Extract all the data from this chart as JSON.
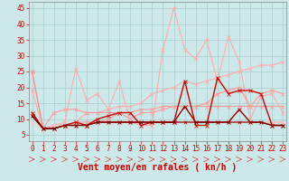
{
  "title": "",
  "xlabel": "Vent moyen/en rafales ( kn/h )",
  "bg_color": "#cce8e8",
  "grid_color": "#aacccc",
  "x_ticks": [
    0,
    1,
    2,
    3,
    4,
    5,
    6,
    7,
    8,
    9,
    10,
    11,
    12,
    13,
    14,
    15,
    16,
    17,
    18,
    19,
    20,
    21,
    22,
    23
  ],
  "y_ticks": [
    5,
    10,
    15,
    20,
    25,
    30,
    35,
    40,
    45
  ],
  "xlim": [
    -0.3,
    23.3
  ],
  "ylim": [
    3,
    47
  ],
  "lines": [
    {
      "x": [
        0,
        1,
        2,
        3,
        4,
        5,
        6,
        7,
        8,
        9,
        10,
        11,
        12,
        13,
        14,
        15,
        16,
        17,
        18,
        19,
        20,
        21,
        22,
        23
      ],
      "y": [
        25,
        7,
        8,
        9,
        26,
        16,
        18,
        13,
        22,
        9,
        8,
        8,
        32,
        45,
        32,
        29,
        35,
        22,
        36,
        28,
        10,
        17,
        18,
        12
      ],
      "color": "#ffaaaa",
      "lw": 0.8,
      "marker": "x",
      "ms": 3
    },
    {
      "x": [
        0,
        1,
        2,
        3,
        4,
        5,
        6,
        7,
        8,
        9,
        10,
        11,
        12,
        13,
        14,
        15,
        16,
        17,
        18,
        19,
        20,
        21,
        22,
        23
      ],
      "y": [
        19,
        7,
        7,
        8,
        9,
        12,
        12,
        13,
        14,
        14,
        15,
        18,
        19,
        20,
        22,
        21,
        22,
        23,
        24,
        25,
        26,
        27,
        27,
        28
      ],
      "color": "#ffaaaa",
      "lw": 0.8,
      "marker": "x",
      "ms": 3
    },
    {
      "x": [
        0,
        1,
        2,
        3,
        4,
        5,
        6,
        7,
        8,
        9,
        10,
        11,
        12,
        13,
        14,
        15,
        16,
        17,
        18,
        19,
        20,
        21,
        22,
        23
      ],
      "y": [
        11,
        7,
        8,
        8,
        9,
        9,
        9,
        10,
        12,
        10,
        12,
        12,
        13,
        14,
        14,
        14,
        15,
        18,
        19,
        20,
        14,
        18,
        19,
        18
      ],
      "color": "#ff9999",
      "lw": 0.8,
      "marker": "x",
      "ms": 3
    },
    {
      "x": [
        0,
        1,
        2,
        3,
        4,
        5,
        6,
        7,
        8,
        9,
        10,
        11,
        12,
        13,
        14,
        15,
        16,
        17,
        18,
        19,
        20,
        21,
        22,
        23
      ],
      "y": [
        12,
        7,
        12,
        13,
        13,
        12,
        12,
        12,
        12,
        12,
        13,
        13,
        14,
        14,
        14,
        14,
        14,
        14,
        14,
        14,
        14,
        14,
        14,
        14
      ],
      "color": "#ff9999",
      "lw": 0.8,
      "marker": "x",
      "ms": 3
    },
    {
      "x": [
        0,
        1,
        2,
        3,
        4,
        5,
        6,
        7,
        8,
        9,
        10,
        11,
        12,
        13,
        14,
        15,
        16,
        17,
        18,
        19,
        20,
        21,
        22,
        23
      ],
      "y": [
        25,
        7,
        8,
        8,
        8,
        8,
        9,
        9,
        9,
        9,
        9,
        9,
        9,
        9,
        9,
        9,
        9,
        9,
        9,
        9,
        9,
        9,
        9,
        9
      ],
      "color": "#ff8888",
      "lw": 0.8,
      "marker": "x",
      "ms": 3
    },
    {
      "x": [
        0,
        1,
        2,
        3,
        4,
        5,
        6,
        7,
        8,
        9,
        10,
        11,
        12,
        13,
        14,
        15,
        16,
        17,
        18,
        19,
        20,
        21,
        22,
        23
      ],
      "y": [
        9,
        7,
        8,
        8,
        8,
        8,
        9,
        9,
        9,
        9,
        9,
        9,
        9,
        9,
        9,
        9,
        9,
        9,
        9,
        9,
        9,
        9,
        9,
        9
      ],
      "color": "#ffcccc",
      "lw": 0.8,
      "marker": "x",
      "ms": 2
    },
    {
      "x": [
        0,
        1,
        2,
        3,
        4,
        5,
        6,
        7,
        8,
        9,
        10,
        11,
        12,
        13,
        14,
        15,
        16,
        17,
        18,
        19,
        20,
        21,
        22,
        23
      ],
      "y": [
        12,
        7,
        7,
        8,
        9,
        8,
        10,
        11,
        12,
        12,
        8,
        9,
        9,
        9,
        22,
        8,
        8,
        23,
        18,
        19,
        19,
        18,
        8,
        8
      ],
      "color": "#cc0000",
      "lw": 1.0,
      "marker": "x",
      "ms": 3
    },
    {
      "x": [
        0,
        1,
        2,
        3,
        4,
        5,
        6,
        7,
        8,
        9,
        10,
        11,
        12,
        13,
        14,
        15,
        16,
        17,
        18,
        19,
        20,
        21,
        22,
        23
      ],
      "y": [
        11,
        7,
        7,
        8,
        8,
        8,
        9,
        9,
        9,
        9,
        9,
        9,
        9,
        9,
        14,
        9,
        9,
        9,
        9,
        13,
        9,
        9,
        8,
        8
      ],
      "color": "#990000",
      "lw": 1.0,
      "marker": "x",
      "ms": 3
    },
    {
      "x": [
        0,
        1,
        2,
        3,
        4,
        5,
        6,
        7,
        8,
        9,
        10,
        11,
        12,
        13,
        14,
        15,
        16,
        17,
        18,
        19,
        20,
        21,
        22,
        23
      ],
      "y": [
        11,
        7,
        7,
        8,
        8,
        8,
        9,
        9,
        9,
        9,
        9,
        9,
        9,
        9,
        9,
        9,
        9,
        9,
        9,
        9,
        9,
        9,
        8,
        8
      ],
      "color": "#770000",
      "lw": 0.8,
      "marker": "x",
      "ms": 2
    }
  ],
  "xlabel_color": "#cc0000",
  "tick_color": "#cc0000",
  "xlabel_size": 7,
  "tick_label_size": 5.5
}
